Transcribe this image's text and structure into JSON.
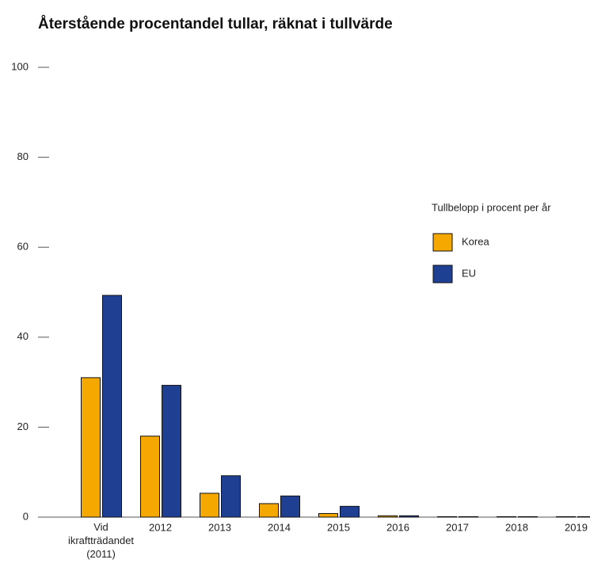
{
  "chart_data": {
    "type": "bar",
    "title": "Återstående procentandel tullar, räknat i tullvärde",
    "categories": [
      "Vid ikraftträdandet (2011)",
      "2012",
      "2013",
      "2014",
      "2015",
      "2016",
      "2017",
      "2018",
      "2019"
    ],
    "series": [
      {
        "name": "Korea",
        "color": "#f5a800",
        "values": [
          31,
          18,
          5.3,
          3,
          0.8,
          0.3,
          0.1,
          0.1,
          0.1
        ]
      },
      {
        "name": "EU",
        "color": "#1f3f93",
        "values": [
          49.3,
          29.3,
          9.2,
          4.7,
          2.4,
          0.3,
          0.1,
          0.1,
          0.1
        ]
      }
    ],
    "legend_title": "Tullbelopp i procent per år",
    "ylim": [
      0,
      100
    ],
    "yticks": [
      0,
      20,
      40,
      60,
      80,
      100
    ],
    "grid": false
  }
}
